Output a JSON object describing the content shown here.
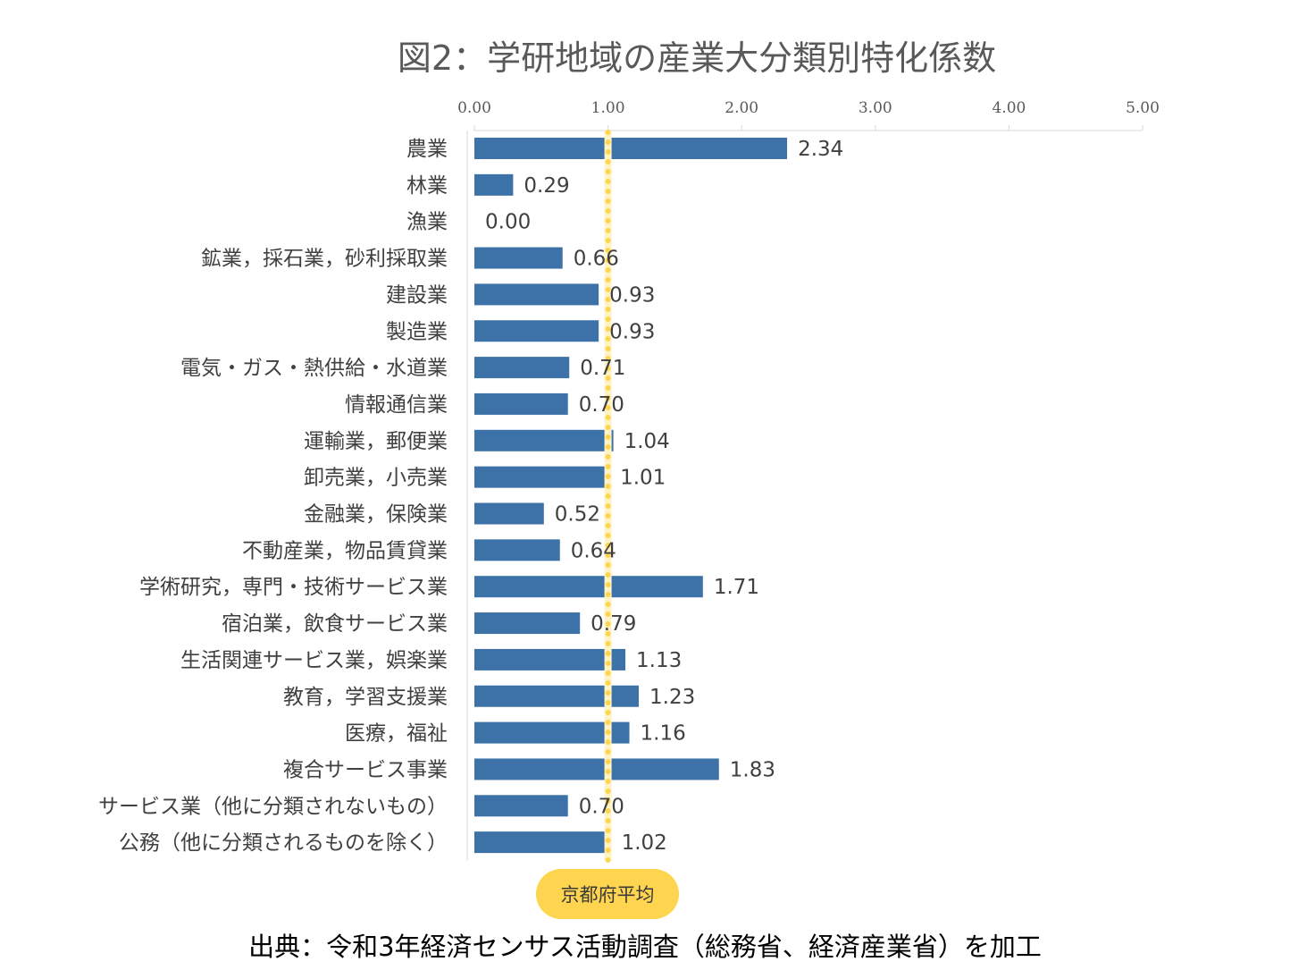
{
  "chart_data": {
    "type": "bar",
    "orientation": "horizontal",
    "title": "図2：学研地域の産業大分類別特化係数",
    "categories": [
      "農業",
      "林業",
      "漁業",
      "鉱業，採石業，砂利採取業",
      "建設業",
      "製造業",
      "電気・ガス・熱供給・水道業",
      "情報通信業",
      "運輸業，郵便業",
      "卸売業，小売業",
      "金融業，保険業",
      "不動産業，物品賃貸業",
      "学術研究，専門・技術サービス業",
      "宿泊業，飲食サービス業",
      "生活関連サービス業，娯楽業",
      "教育，学習支援業",
      "医療，福祉",
      "複合サービス事業",
      "サービス業（他に分類されないもの）",
      "公務（他に分類されるものを除く）"
    ],
    "values": [
      2.34,
      0.29,
      0.0,
      0.66,
      0.93,
      0.93,
      0.71,
      0.7,
      1.04,
      1.01,
      0.52,
      0.64,
      1.71,
      0.79,
      1.13,
      1.23,
      1.16,
      1.83,
      0.7,
      1.02
    ],
    "data_labels": [
      "2.34",
      "0.29",
      "0.00",
      "0.66",
      "0.93",
      "0.93",
      "0.71",
      "0.70",
      "1.04",
      "1.01",
      "0.52",
      "0.64",
      "1.71",
      "0.79",
      "1.13",
      "1.23",
      "1.16",
      "1.83",
      "0.70",
      "1.02"
    ],
    "x_ticks": [
      "0.00",
      "1.00",
      "2.00",
      "3.00",
      "4.00",
      "5.00"
    ],
    "xlim": [
      0,
      5
    ],
    "axis_position": "top",
    "grid": false,
    "reference_line": {
      "value": 1.0,
      "label": "京都府平均",
      "color": "#FFD54F"
    },
    "bar_color": "#3C72A7"
  },
  "source_note": "出典：令和3年経済センサス活動調査（総務省、経済産業省）を加工"
}
